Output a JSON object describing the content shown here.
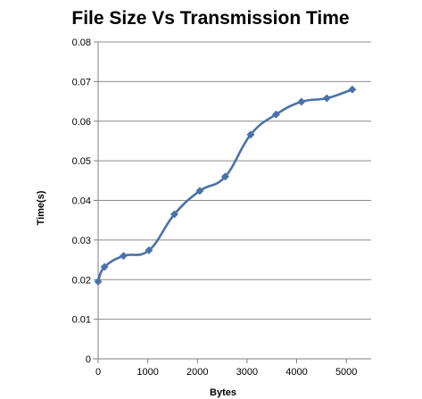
{
  "chart_data": {
    "type": "line",
    "title": "File Size Vs Transmission Time",
    "xlabel": "Bytes",
    "ylabel": "Time(s)",
    "xlim": [
      0,
      5500
    ],
    "ylim": [
      0,
      0.08
    ],
    "x_ticks": [
      0,
      1000,
      2000,
      3000,
      4000,
      5000
    ],
    "y_ticks": [
      0,
      0.01,
      0.02,
      0.03,
      0.04,
      0.05,
      0.06,
      0.07,
      0.08
    ],
    "x_tick_labels": [
      "0",
      "1000",
      "2000",
      "3000",
      "4000",
      "5000"
    ],
    "y_tick_labels": [
      "0",
      "0.01",
      "0.02",
      "0.03",
      "0.04",
      "0.05",
      "0.06",
      "0.07",
      "0.08"
    ],
    "grid": "horizontal",
    "legend": "none",
    "series": [
      {
        "color": "#4a72a8",
        "marker": "diamond",
        "smooth": true,
        "x": [
          0,
          128,
          512,
          1024,
          1536,
          2048,
          2560,
          3072,
          3584,
          4096,
          4608,
          5120
        ],
        "y": [
          0.0195,
          0.0232,
          0.026,
          0.0274,
          0.0365,
          0.0424,
          0.046,
          0.0566,
          0.0617,
          0.0649,
          0.0658,
          0.068
        ]
      }
    ]
  }
}
